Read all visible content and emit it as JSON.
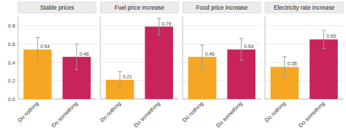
{
  "chart_data": [
    {
      "type": "bar",
      "title": "Stable prices",
      "categories": [
        "Do nothing",
        "Do something"
      ],
      "values": [
        0.54,
        0.46
      ],
      "errors": [
        0.13,
        0.14
      ],
      "colors": [
        "#F5A623",
        "#C8235A"
      ],
      "ylim": [
        0.0,
        0.9
      ],
      "yticks": [
        {
          "value": 0.0,
          "label": "0.0"
        },
        0.2,
        0.4,
        0.6,
        0.8
      ],
      "grid": true,
      "data_labels": true
    },
    {
      "type": "bar",
      "title": "Fuel price increase",
      "categories": [
        "Do nothing",
        "Do something"
      ],
      "values": [
        0.21,
        0.79
      ],
      "errors": [
        0.09,
        0.09
      ],
      "colors": [
        "#F5A623",
        "#C8235A"
      ],
      "ylim": [
        0.0,
        0.9
      ],
      "yticks": [
        {
          "value": 0.0,
          "label": "0.0"
        },
        0.2,
        0.4,
        0.6,
        0.8
      ],
      "grid": true,
      "data_labels": true,
      "tick_labels": "x"
    },
    {
      "type": "bar",
      "title": "Food price increase",
      "categories": [
        "Do nothing",
        "Do something"
      ],
      "values": [
        0.46,
        0.54
      ],
      "errors": [
        0.13,
        0.12
      ],
      "colors": [
        "#F5A623",
        "#C8235A"
      ],
      "ylim": [
        0.0,
        0.9
      ],
      "yticks": [
        {
          "value": 0.0,
          "label": "0.0"
        },
        0.2,
        0.4,
        0.6,
        0.8
      ],
      "grid": true,
      "data_labels": true,
      "tick_labels": "x"
    },
    {
      "type": "bar",
      "title": "Electricity rate increase",
      "categories": [
        "Do nothing",
        "Do something"
      ],
      "values": [
        0.35,
        0.65
      ],
      "errors": [
        0.11,
        0.1
      ],
      "colors": [
        "#F5A623",
        "#C8235A"
      ],
      "ylim": [
        0.0,
        0.9
      ],
      "yticks": [
        {
          "value": 0.0,
          "label": "0.0"
        },
        0.2,
        0.4,
        0.6,
        0.8
      ],
      "grid": true,
      "data_labels": true,
      "tick_labels": "x"
    }
  ]
}
